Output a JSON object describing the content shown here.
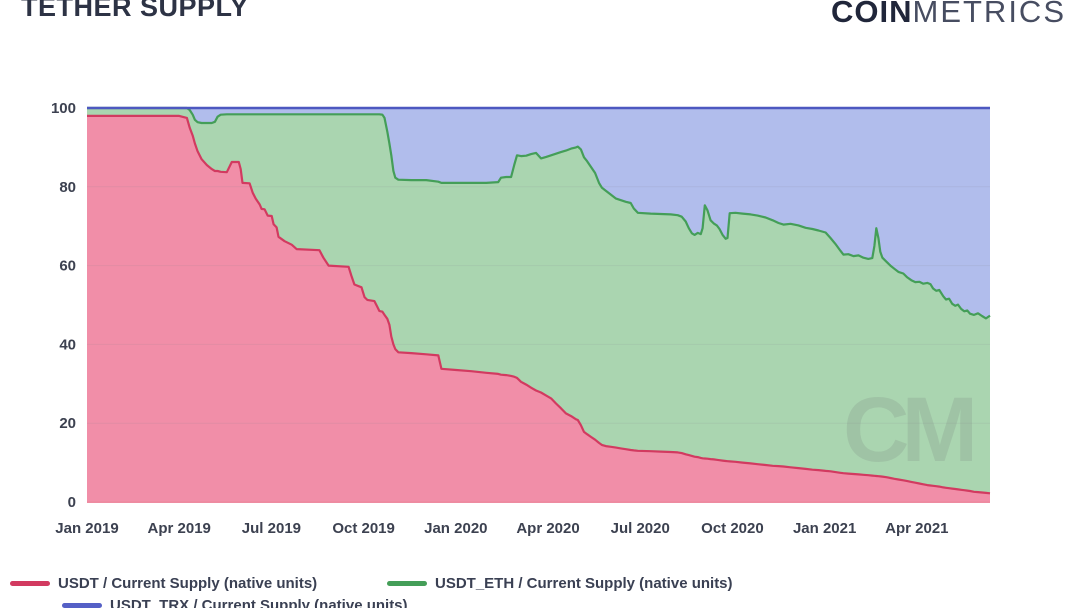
{
  "page": {
    "title": "TETHER SUPPLY"
  },
  "logo": {
    "bold": "COIN",
    "light": "METRICS"
  },
  "watermark": "CM",
  "legend": {
    "items": [
      {
        "label": "USDT / Current Supply (native units)",
        "color": "#d23a60"
      },
      {
        "label": "USDT_ETH / Current Supply (native units)",
        "color": "#449e58"
      },
      {
        "label": "USDT_TRX / Current Supply (native units)",
        "color": "#5560c6"
      }
    ]
  },
  "chart_data": {
    "type": "area",
    "stacked": true,
    "title": "TETHER SUPPLY",
    "xlabel": "",
    "ylabel": "",
    "ylim": [
      0,
      100
    ],
    "xlim_months": [
      0,
      29.38
    ],
    "grid": "faint horizontal lines at y ticks",
    "legend_position": "below chart, bottom-left, third item clipped by viewport",
    "y_ticks": [
      0,
      20,
      40,
      60,
      80,
      100
    ],
    "x_tick_months": [
      0,
      3,
      6,
      9,
      12,
      15,
      18,
      21,
      24,
      27
    ],
    "x_tick_labels": [
      "Jan 2019",
      "Apr 2019",
      "Jul 2019",
      "Oct 2019",
      "Jan 2020",
      "Apr 2020",
      "Jul 2020",
      "Oct 2020",
      "Jan 2021",
      "Apr 2021"
    ],
    "series": [
      {
        "name": "USDT / Current Supply (native units)",
        "line": "#d23a60",
        "fill": "#f18ea8"
      },
      {
        "name": "USDT_ETH / Current Supply (native units)",
        "line": "#449e58",
        "fill": "#aad5b0"
      },
      {
        "name": "USDT_TRX / Current Supply (native units)",
        "line": "#4d58c0",
        "fill": "#b1bdec"
      }
    ],
    "points_format": "[months_since_jan_2019, usdt_pct, usdt_plus_usdt_eth_pct]; usdt_trx fills remainder up to 100",
    "points": [
      [
        0,
        98,
        100
      ],
      [
        1.1,
        98,
        100
      ],
      [
        2.1,
        98,
        100
      ],
      [
        3.0,
        98,
        100
      ],
      [
        3.25,
        97.5,
        100
      ],
      [
        3.34,
        95,
        99.5
      ],
      [
        3.44,
        93,
        98.3
      ],
      [
        3.51,
        91,
        97
      ],
      [
        3.6,
        89,
        96.4
      ],
      [
        3.73,
        87,
        96.2
      ],
      [
        3.9,
        85.5,
        96.2
      ],
      [
        4.06,
        84.5,
        96.2
      ],
      [
        4.16,
        84,
        96.5
      ],
      [
        4.25,
        84,
        97.8
      ],
      [
        4.35,
        83.8,
        98.3
      ],
      [
        4.55,
        83.7,
        98.4
      ],
      [
        4.71,
        86.3,
        98.4
      ],
      [
        4.94,
        86.3,
        98.4
      ],
      [
        5.0,
        84.5,
        98.4
      ],
      [
        5.06,
        81,
        98.4
      ],
      [
        5.29,
        80.9,
        98.4
      ],
      [
        5.39,
        78.5,
        98.4
      ],
      [
        5.49,
        77,
        98.4
      ],
      [
        5.62,
        75.5,
        98.4
      ],
      [
        5.68,
        74.4,
        98.4
      ],
      [
        5.78,
        74.3,
        98.4
      ],
      [
        5.88,
        72.7,
        98.4
      ],
      [
        6.01,
        72.6,
        98.4
      ],
      [
        6.07,
        70.5,
        98.4
      ],
      [
        6.17,
        69.7,
        98.4
      ],
      [
        6.23,
        67.3,
        98.4
      ],
      [
        6.43,
        66.2,
        98.4
      ],
      [
        6.66,
        65.3,
        98.4
      ],
      [
        6.82,
        64.2,
        98.4
      ],
      [
        7.56,
        63.9,
        98.4
      ],
      [
        7.69,
        62,
        98.4
      ],
      [
        7.86,
        60,
        98.4
      ],
      [
        8.51,
        59.7,
        98.4
      ],
      [
        8.6,
        57.5,
        98.4
      ],
      [
        8.7,
        55.2,
        98.4
      ],
      [
        8.93,
        54.5,
        98.4
      ],
      [
        9.03,
        52,
        98.4
      ],
      [
        9.12,
        51.3,
        98.4
      ],
      [
        9.35,
        51,
        98.4
      ],
      [
        9.45,
        49.5,
        98.4
      ],
      [
        9.51,
        48.5,
        98.4
      ],
      [
        9.61,
        48.3,
        98.3
      ],
      [
        9.68,
        47.5,
        97.5
      ],
      [
        9.77,
        46.5,
        94
      ],
      [
        9.84,
        45,
        91
      ],
      [
        9.9,
        42,
        88
      ],
      [
        9.97,
        40,
        84
      ],
      [
        10.03,
        38.8,
        82.3
      ],
      [
        10.13,
        38,
        81.8
      ],
      [
        10.55,
        37.8,
        81.7
      ],
      [
        11.04,
        37.5,
        81.7
      ],
      [
        11.43,
        37.2,
        81.3
      ],
      [
        11.53,
        33.8,
        81
      ],
      [
        12.01,
        33.5,
        81
      ],
      [
        12.5,
        33.2,
        81
      ],
      [
        12.99,
        32.8,
        81
      ],
      [
        13.38,
        32.5,
        81.2
      ],
      [
        13.47,
        32.3,
        82.3
      ],
      [
        13.64,
        32.2,
        82.5
      ],
      [
        13.8,
        32,
        82.5
      ],
      [
        13.9,
        31.8,
        85.5
      ],
      [
        13.99,
        31.5,
        88
      ],
      [
        14.12,
        30.5,
        87.8
      ],
      [
        14.29,
        29.8,
        87.9
      ],
      [
        14.45,
        29,
        88.3
      ],
      [
        14.61,
        28.3,
        88.6
      ],
      [
        14.77,
        27.8,
        87.2
      ],
      [
        14.94,
        27,
        87.6
      ],
      [
        15.1,
        26.3,
        88
      ],
      [
        15.26,
        25,
        88.4
      ],
      [
        15.42,
        23.8,
        88.8
      ],
      [
        15.58,
        22.5,
        89.2
      ],
      [
        15.75,
        21.8,
        89.7
      ],
      [
        15.91,
        21,
        90
      ],
      [
        15.97,
        20.8,
        90.2
      ],
      [
        16.07,
        19.5,
        89.5
      ],
      [
        16.17,
        17.8,
        87.5
      ],
      [
        16.27,
        17.2,
        86.5
      ],
      [
        16.4,
        16.5,
        85
      ],
      [
        16.53,
        15.8,
        83.5
      ],
      [
        16.66,
        15,
        81
      ],
      [
        16.75,
        14.5,
        79.8
      ],
      [
        16.88,
        14.2,
        79
      ],
      [
        17.05,
        14,
        78
      ],
      [
        17.21,
        13.8,
        77
      ],
      [
        17.37,
        13.6,
        76.6
      ],
      [
        17.53,
        13.4,
        76.2
      ],
      [
        17.69,
        13.2,
        75.9
      ],
      [
        17.79,
        13.1,
        74.5
      ],
      [
        17.92,
        13,
        73.4
      ],
      [
        18.34,
        12.9,
        73.2
      ],
      [
        18.67,
        12.8,
        73.1
      ],
      [
        18.99,
        12.7,
        73
      ],
      [
        19.22,
        12.6,
        72.8
      ],
      [
        19.35,
        12.4,
        72.4
      ],
      [
        19.48,
        12.1,
        71.2
      ],
      [
        19.58,
        11.9,
        69.5
      ],
      [
        19.68,
        11.7,
        68.2
      ],
      [
        19.77,
        11.5,
        67.8
      ],
      [
        19.87,
        11.4,
        68.3
      ],
      [
        19.97,
        11.2,
        68
      ],
      [
        20.03,
        11.1,
        69.5
      ],
      [
        20.1,
        11.05,
        75.3
      ],
      [
        20.19,
        11,
        74
      ],
      [
        20.29,
        10.9,
        71.5
      ],
      [
        20.39,
        10.8,
        70.7
      ],
      [
        20.49,
        10.7,
        70.2
      ],
      [
        20.58,
        10.6,
        69.3
      ],
      [
        20.68,
        10.5,
        67.8
      ],
      [
        20.78,
        10.4,
        66.8
      ],
      [
        20.84,
        10.35,
        67
      ],
      [
        20.91,
        10.3,
        73.3
      ],
      [
        21.1,
        10.2,
        73.4
      ],
      [
        21.33,
        10,
        73.2
      ],
      [
        21.59,
        9.8,
        73
      ],
      [
        21.82,
        9.6,
        72.7
      ],
      [
        22.08,
        9.4,
        72.2
      ],
      [
        22.31,
        9.2,
        71.5
      ],
      [
        22.5,
        9.1,
        70.8
      ],
      [
        22.66,
        9,
        70.4
      ],
      [
        22.89,
        8.8,
        70.6
      ],
      [
        23.15,
        8.6,
        70.2
      ],
      [
        23.38,
        8.4,
        69.6
      ],
      [
        23.6,
        8.2,
        69.3
      ],
      [
        23.8,
        8.1,
        68.9
      ],
      [
        24.03,
        7.9,
        68.4
      ],
      [
        24.19,
        7.8,
        67
      ],
      [
        24.35,
        7.6,
        65.5
      ],
      [
        24.51,
        7.4,
        63.8
      ],
      [
        24.61,
        7.3,
        62.8
      ],
      [
        24.77,
        7.2,
        62.9
      ],
      [
        24.94,
        7.1,
        62.4
      ],
      [
        25.1,
        7,
        62.6
      ],
      [
        25.26,
        6.9,
        62
      ],
      [
        25.42,
        6.8,
        61.7
      ],
      [
        25.55,
        6.7,
        61.9
      ],
      [
        25.62,
        6.65,
        65
      ],
      [
        25.68,
        6.6,
        69.5
      ],
      [
        25.75,
        6.55,
        67
      ],
      [
        25.81,
        6.5,
        63.5
      ],
      [
        25.88,
        6.45,
        62
      ],
      [
        26.01,
        6.3,
        61
      ],
      [
        26.14,
        6.1,
        60
      ],
      [
        26.27,
        5.9,
        59.2
      ],
      [
        26.4,
        5.7,
        58.4
      ],
      [
        26.56,
        5.5,
        58
      ],
      [
        26.69,
        5.3,
        57
      ],
      [
        26.82,
        5.1,
        56.3
      ],
      [
        26.95,
        4.9,
        55.8
      ],
      [
        27.08,
        4.7,
        55.9
      ],
      [
        27.21,
        4.5,
        55.4
      ],
      [
        27.34,
        4.3,
        55.6
      ],
      [
        27.44,
        4.2,
        55.3
      ],
      [
        27.53,
        4.1,
        54.2
      ],
      [
        27.63,
        4,
        53.6
      ],
      [
        27.73,
        3.9,
        53.8
      ],
      [
        27.86,
        3.7,
        52.2
      ],
      [
        27.95,
        3.6,
        51.4
      ],
      [
        28.05,
        3.5,
        51.6
      ],
      [
        28.15,
        3.4,
        50.3
      ],
      [
        28.25,
        3.3,
        49.8
      ],
      [
        28.34,
        3.2,
        50.1
      ],
      [
        28.44,
        3.1,
        49
      ],
      [
        28.54,
        3,
        48.4
      ],
      [
        28.64,
        2.9,
        48.6
      ],
      [
        28.73,
        2.8,
        47.8
      ],
      [
        28.86,
        2.6,
        47.5
      ],
      [
        28.99,
        2.5,
        47.9
      ],
      [
        29.12,
        2.4,
        47.2
      ],
      [
        29.25,
        2.3,
        46.6
      ],
      [
        29.38,
        2.2,
        47.3
      ]
    ],
    "colors": {
      "usdt_fill": "#f18ea8",
      "usdt_line": "#d23a60",
      "usdt_eth_fill": "#aad5b0",
      "usdt_eth_line": "#449e58",
      "usdt_trx_fill": "#b1bdec",
      "top_border_line": "#4d58c0",
      "bottom_border_line": "#ee8ba1",
      "gridline": "#7f7f8c",
      "axis_text": "#3c4150",
      "watermark": "#6b6b70"
    }
  }
}
